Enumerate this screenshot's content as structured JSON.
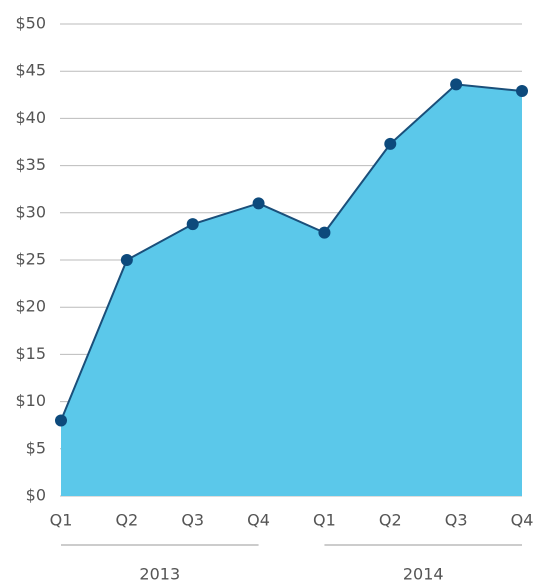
{
  "chart_data": {
    "type": "area",
    "categories": [
      "Q1",
      "Q2",
      "Q3",
      "Q4",
      "Q1",
      "Q2",
      "Q3",
      "Q4"
    ],
    "groups": [
      "2013",
      "2014"
    ],
    "values": [
      8,
      25,
      28.8,
      31,
      27.9,
      37.3,
      43.6,
      42.9
    ],
    "color": "#5bc8ea",
    "line_color": "#1a4f7a",
    "marker_color": "#0d4a7c",
    "ylim": [
      0,
      50
    ],
    "yticks": [
      {
        "value": 0,
        "label": "$0"
      },
      {
        "value": 5,
        "label": "$5"
      },
      {
        "value": 10,
        "label": "$10"
      },
      {
        "value": 15,
        "label": "$15"
      },
      {
        "value": 20,
        "label": "$20"
      },
      {
        "value": 25,
        "label": "$25"
      },
      {
        "value": 30,
        "label": "$30"
      },
      {
        "value": 35,
        "label": "$35"
      },
      {
        "value": 40,
        "label": "$40"
      },
      {
        "value": 45,
        "label": "$45"
      },
      {
        "value": 50,
        "label": "$50"
      }
    ],
    "grid": true
  }
}
